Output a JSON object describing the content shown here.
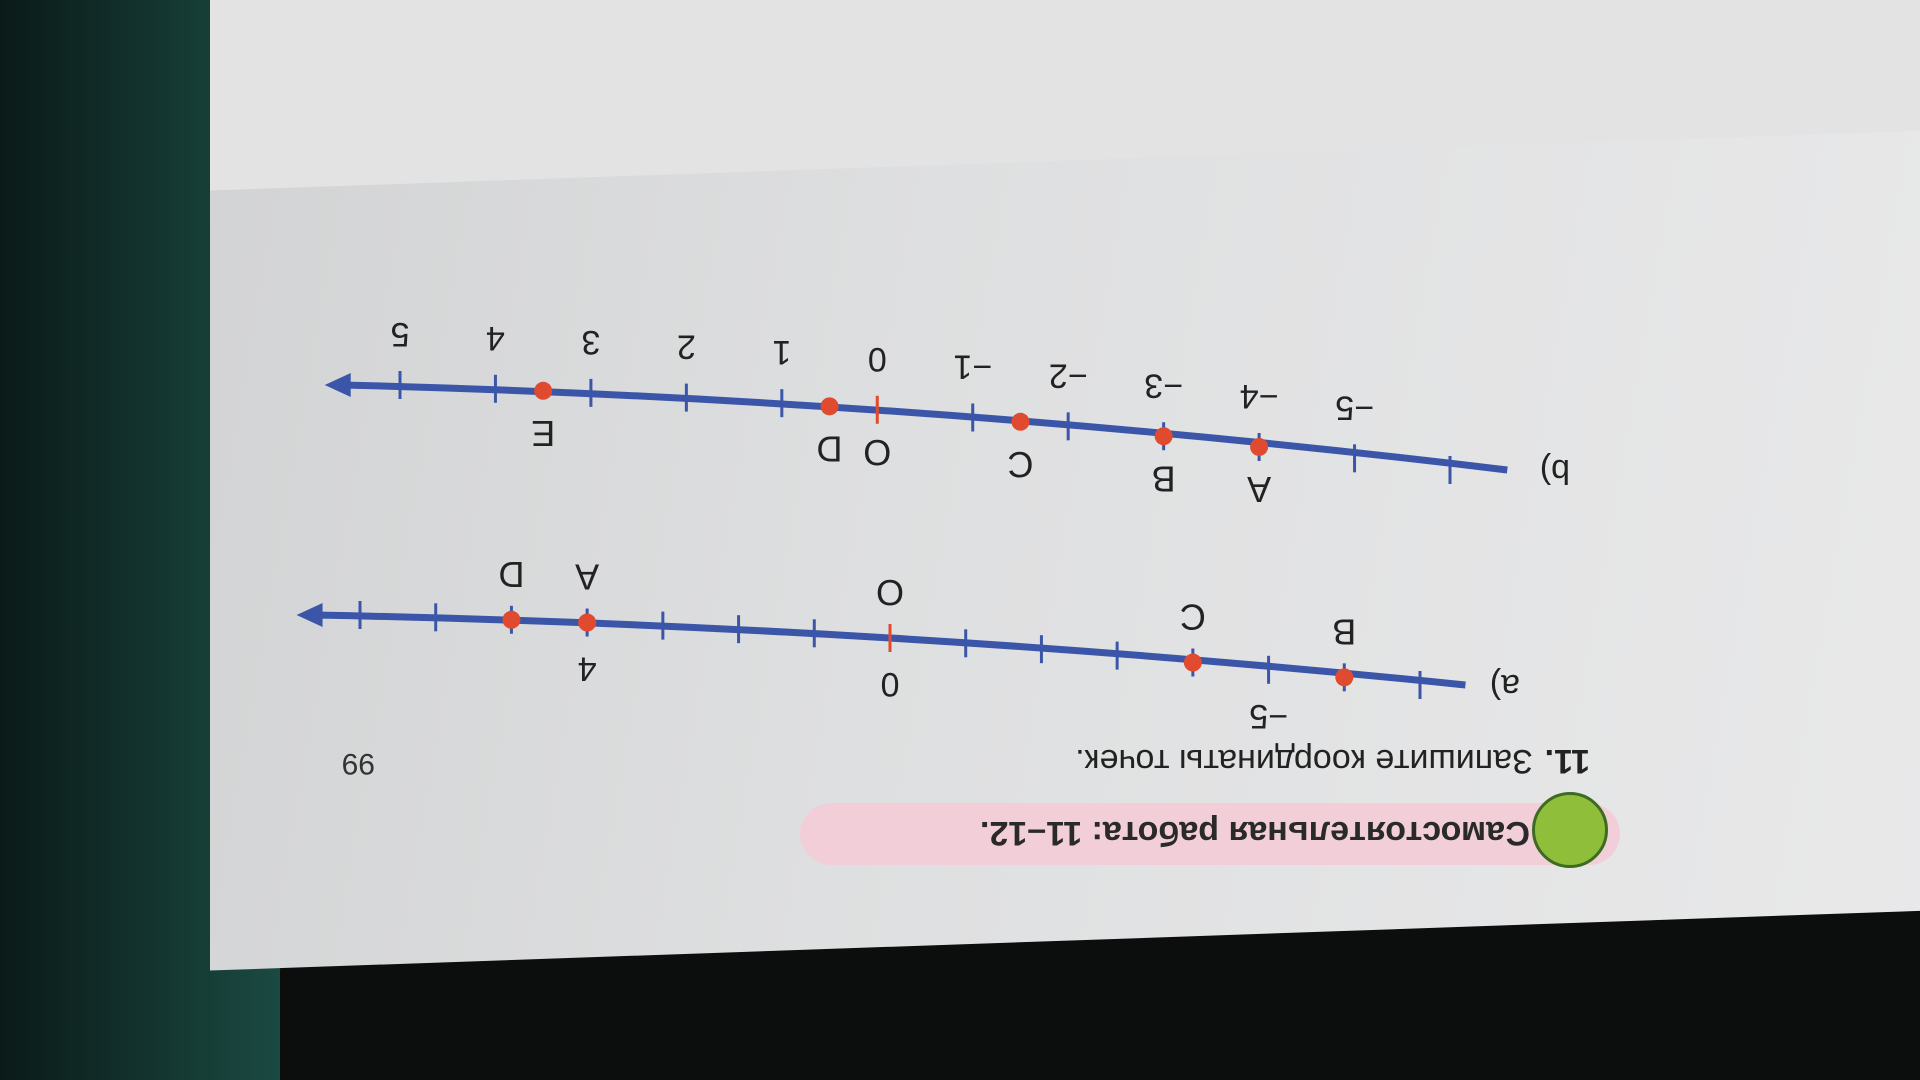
{
  "page_number": "99",
  "heading": "Самостоятельная работа: 11–12.",
  "task": {
    "number": "11.",
    "text": "Запишите координаты точек."
  },
  "colors": {
    "line": "#3b56a8",
    "point": "#e04a2e",
    "pill": "#f2cfd8",
    "badge": "#8fbf3a"
  },
  "part_a": {
    "label": "а)",
    "tick_labels": [
      {
        "value": -5,
        "text": "−5"
      },
      {
        "value": 0,
        "text": "0"
      },
      {
        "value": 4,
        "text": "4"
      }
    ],
    "origin_label": "O",
    "points": [
      {
        "name": "B",
        "value": -6
      },
      {
        "name": "C",
        "value": -4
      },
      {
        "name": "D",
        "value": 5
      },
      {
        "name": "A",
        "value": 4
      }
    ]
  },
  "part_b": {
    "label": "b)",
    "tick_labels": [
      "−5",
      "−4",
      "−3",
      "−2",
      "−1",
      "0",
      "1",
      "2",
      "3",
      "4",
      "5"
    ],
    "origin_label": "O",
    "points": [
      {
        "name": "A",
        "value": -4
      },
      {
        "name": "B",
        "value": -3
      },
      {
        "name": "C",
        "value": -1.5
      },
      {
        "name": "D",
        "value": 0.5
      },
      {
        "name": "E",
        "value": 3.5
      }
    ]
  }
}
